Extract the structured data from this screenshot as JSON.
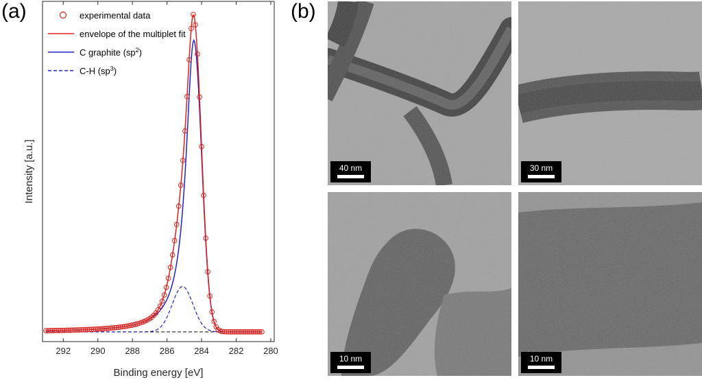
{
  "figure": {
    "panel_a_label": "(a)",
    "panel_b_label": "(b)"
  },
  "chart_data": {
    "type": "line",
    "title": "",
    "xlabel": "Binding energy [eV]",
    "ylabel": "Intensity [a.u.]",
    "xlim": [
      293.2,
      279.8
    ],
    "x_reversed": true,
    "ylim": [
      0,
      1.05
    ],
    "x_ticks": [
      292,
      290,
      288,
      286,
      284,
      282,
      280
    ],
    "y_ticks_labeled": false,
    "grid": false,
    "legend_position": "top-left",
    "legend": [
      {
        "key": "experimental",
        "label": "experimental data",
        "style": "circle",
        "color": "#e0201b"
      },
      {
        "key": "envelope",
        "label": "envelope of the multiplet fit",
        "style": "solid",
        "color": "#e0201b"
      },
      {
        "key": "graphite",
        "label": "C graphite (sp",
        "sup": "2",
        "tail": ")",
        "style": "solid",
        "color": "#1f22c8"
      },
      {
        "key": "ch",
        "label": "C-H (sp",
        "sup": "3",
        "tail": ")",
        "style": "dashed",
        "color": "#1f22c8"
      }
    ],
    "baseline": 0.03,
    "peaks": {
      "graphite": {
        "center": 284.45,
        "height": 0.9,
        "sigma_low_be": 0.45,
        "gamma_high_be": 0.55
      },
      "ch": {
        "center": 285.1,
        "height": 0.14,
        "sigma": 0.6
      }
    },
    "experimental_x_range": [
      293.0,
      280.5
    ],
    "experimental_step": 0.12
  },
  "tem_images": [
    {
      "scale_label": "40 nm",
      "scale_fraction": 0.18
    },
    {
      "scale_label": "30 nm",
      "scale_fraction": 0.18
    },
    {
      "scale_label": "10 nm",
      "scale_fraction": 0.18
    },
    {
      "scale_label": "10 nm",
      "scale_fraction": 0.18
    }
  ]
}
